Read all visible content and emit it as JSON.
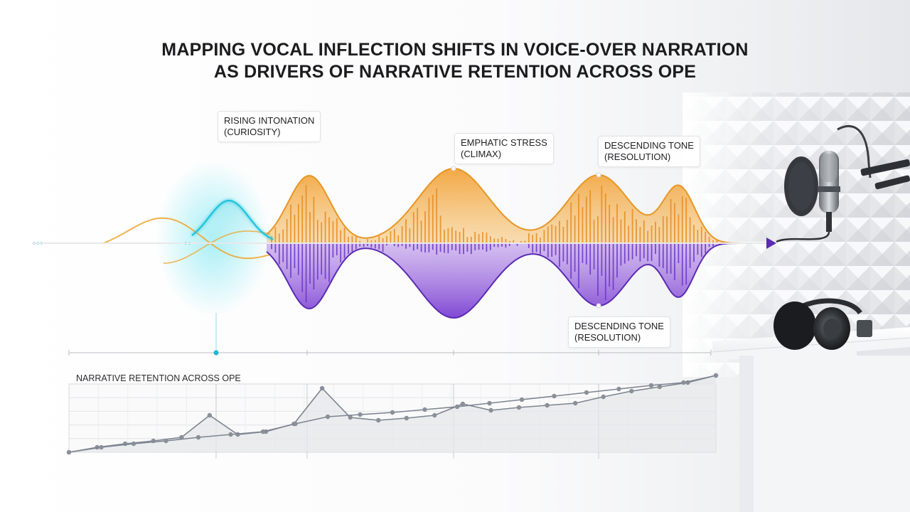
{
  "title": {
    "line1": "MAPPING VOCAL INFLECTION SHIFTS IN VOICE-OVER NARRATION",
    "line2": "AS DRIVERS OF NARRATIVE RETENTION ACROSS OPE"
  },
  "callouts": {
    "rising": {
      "line1": "RISING INTONATION",
      "line2": "(CURIOSITY)"
    },
    "emphatic": {
      "line1": "EMPHATIC STRESS",
      "line2": "(CLIMAX)"
    },
    "descending_top": {
      "line1": "DESCENDING TONE",
      "line2": "(RESOLUTION)"
    },
    "descending_bottom": {
      "line1": "DESCENDING TONE",
      "line2": "(RESOLUTION)"
    }
  },
  "retention_chart": {
    "title": "NARRATIVE RETENTION ACROSS OPE"
  },
  "colors": {
    "cyan": "#22c3dc",
    "orange": "#f0a52e",
    "purple": "#8246d6",
    "dark_purple": "#5b2bb5",
    "chart_line": "#7d8590"
  },
  "chart_data": {
    "type": "line",
    "title": "NARRATIVE RETENTION ACROSS OPE",
    "xlabel": "",
    "ylabel": "",
    "grid": true,
    "series": [
      {
        "values": [
          0,
          0.7,
          1.2,
          1.6,
          2.1,
          5.2,
          2.5,
          2.9,
          4.0,
          9.0,
          4.9,
          4.5,
          4.8,
          5.2,
          6.8,
          5.9,
          6.3,
          6.6,
          6.9,
          7.8,
          8.6,
          9.2,
          9.8,
          10.8
        ]
      },
      {
        "values": [
          0,
          0.7,
          1.2,
          1.6,
          2.1,
          2.5,
          2.9,
          4.0,
          5.0,
          5.3,
          5.6,
          6.0,
          6.4,
          6.9,
          7.4,
          7.9,
          8.4,
          8.9,
          9.4,
          9.8,
          10.8
        ]
      }
    ]
  }
}
